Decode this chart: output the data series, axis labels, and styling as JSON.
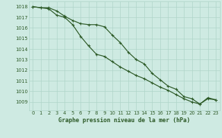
{
  "title": "Graphe pression niveau de la mer (hPa)",
  "background_color": "#ceeae2",
  "grid_color": "#aed4c8",
  "line_color": "#2d5a27",
  "text_color": "#2d5a27",
  "xlim": [
    -0.5,
    23.5
  ],
  "ylim": [
    1008.2,
    1018.5
  ],
  "yticks": [
    1009,
    1010,
    1011,
    1012,
    1013,
    1014,
    1015,
    1016,
    1017,
    1018
  ],
  "xticks": [
    0,
    1,
    2,
    3,
    4,
    5,
    6,
    7,
    8,
    9,
    10,
    11,
    12,
    13,
    14,
    15,
    16,
    17,
    18,
    19,
    20,
    21,
    22,
    23
  ],
  "series1_x": [
    0,
    1,
    2,
    3,
    4,
    5,
    6,
    7,
    8,
    9,
    10,
    11,
    12,
    13,
    14,
    15,
    16,
    17,
    18,
    19,
    20,
    21,
    22,
    23
  ],
  "series1_y": [
    1018.0,
    1017.9,
    1017.9,
    1017.6,
    1017.1,
    1016.7,
    1016.4,
    1016.3,
    1016.3,
    1016.1,
    1015.3,
    1014.6,
    1013.7,
    1013.0,
    1012.6,
    1011.7,
    1011.1,
    1010.5,
    1010.2,
    1009.5,
    1009.3,
    1008.8,
    1009.4,
    1009.2
  ],
  "series2_x": [
    0,
    1,
    2,
    3,
    4,
    5,
    6,
    7,
    8,
    9,
    10,
    11,
    12,
    13,
    14,
    15,
    16,
    17,
    18,
    19,
    20,
    21,
    22,
    23
  ],
  "series2_y": [
    1018.0,
    1017.9,
    1017.8,
    1017.2,
    1017.0,
    1016.3,
    1015.2,
    1014.3,
    1013.5,
    1013.3,
    1012.8,
    1012.3,
    1011.9,
    1011.5,
    1011.2,
    1010.8,
    1010.4,
    1010.1,
    1009.7,
    1009.3,
    1009.0,
    1008.8,
    1009.3,
    1009.2
  ]
}
